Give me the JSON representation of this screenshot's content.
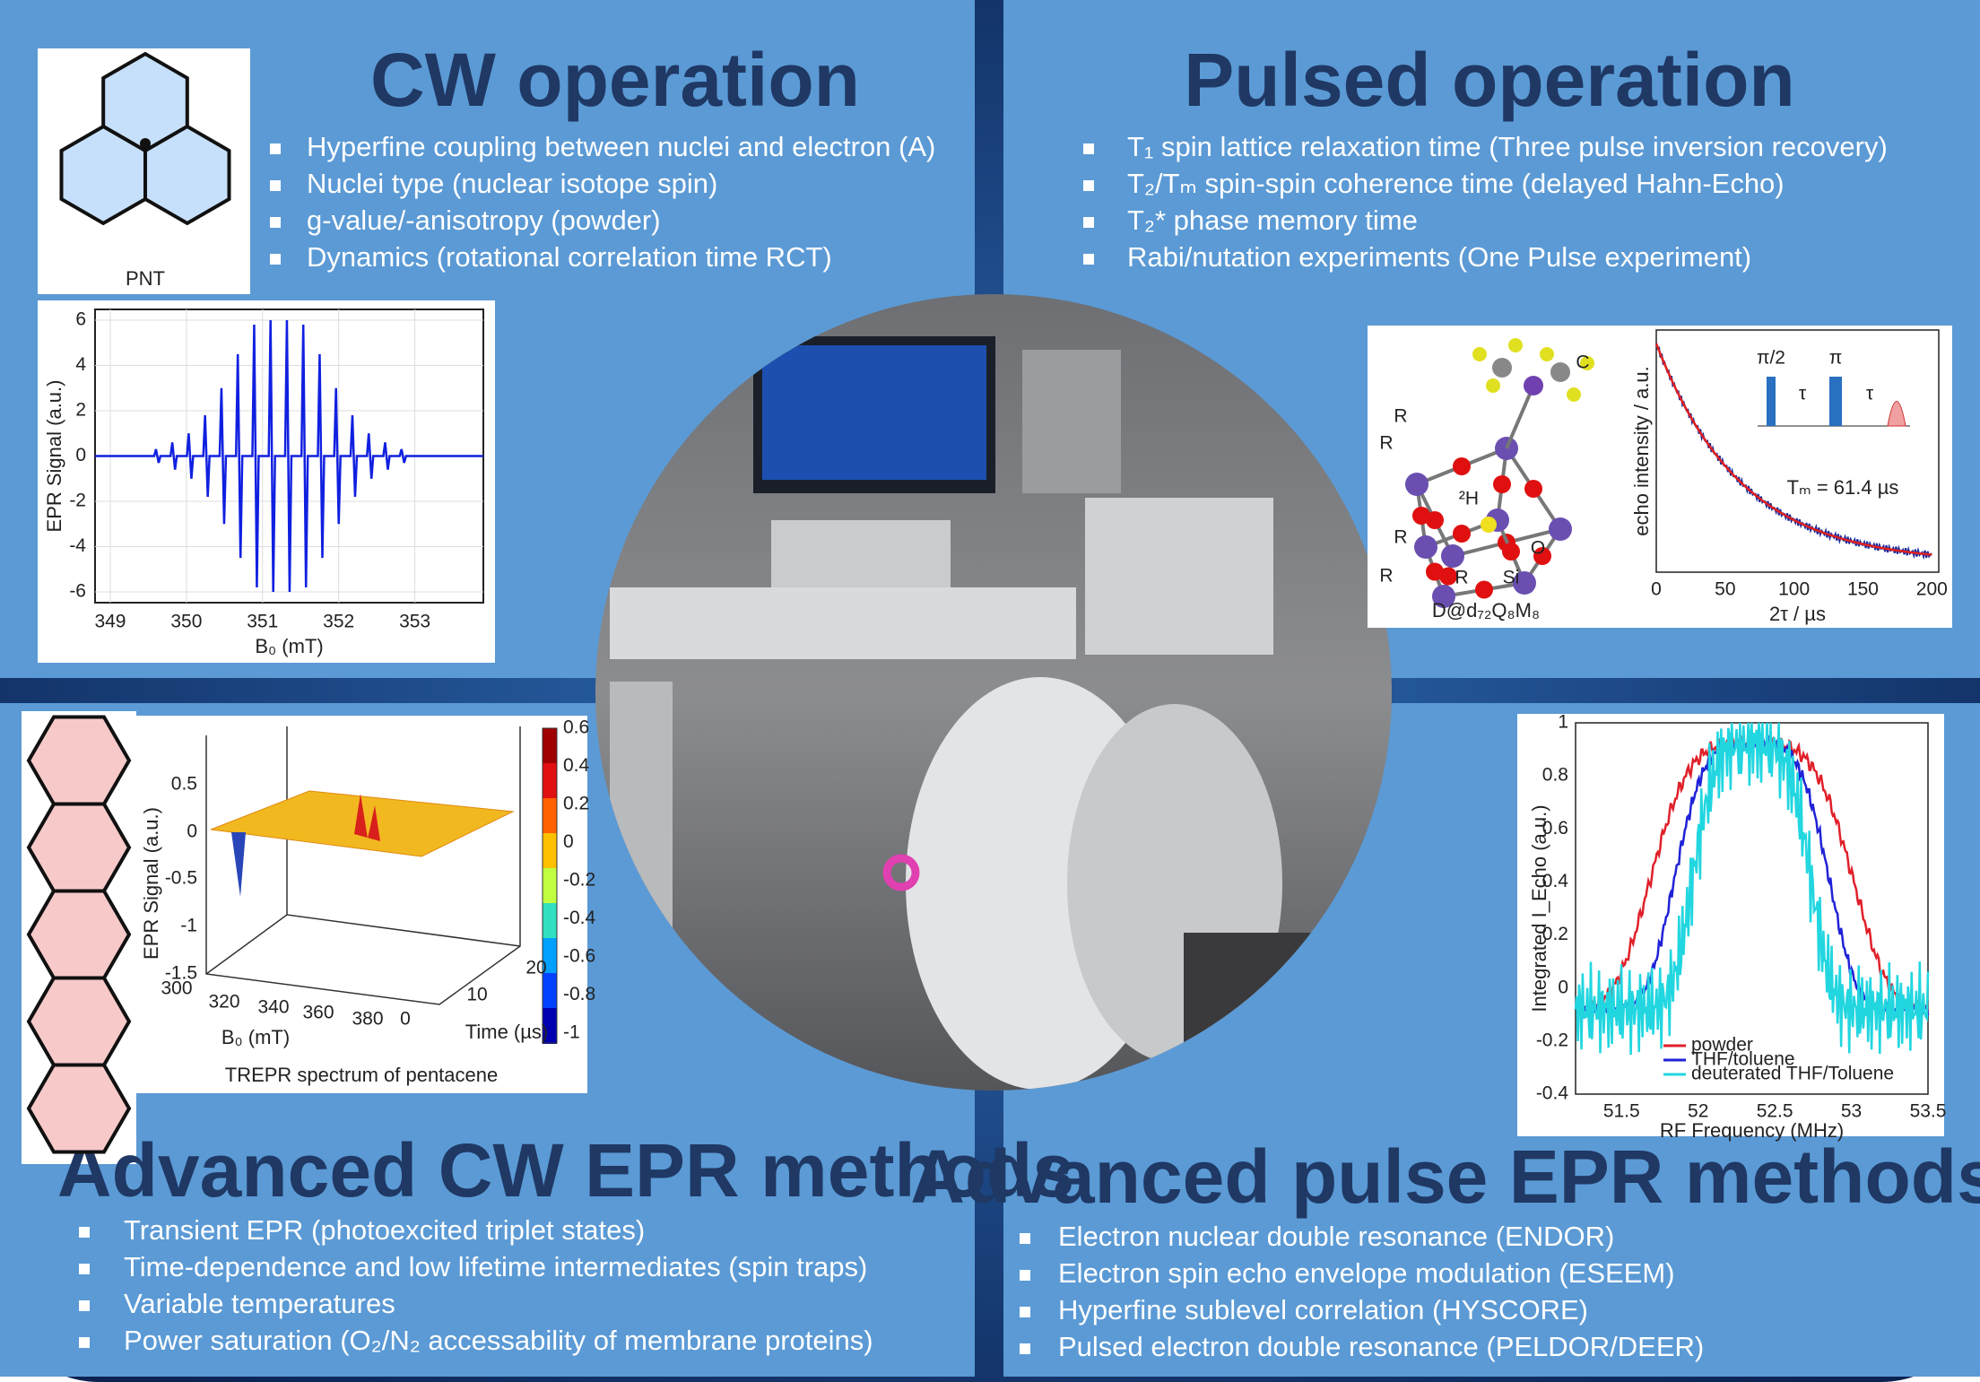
{
  "cw": {
    "title": "CW operation",
    "bullets": [
      "Hyperfine coupling between nuclei and electron (A)",
      "Nuclei type (nuclear isotope spin)",
      "g-value/-anisotropy (powder)",
      "Dynamics (rotational correlation time RCT)"
    ],
    "molecule_label": "PNT",
    "plot": {
      "ylabel": "EPR Signal (a.u.)",
      "xlabel": "B₀ (mT)",
      "yticks": [
        "6",
        "4",
        "2",
        "0",
        "-2",
        "-4",
        "-6"
      ],
      "xticks": [
        "349",
        "350",
        "351",
        "352",
        "353"
      ]
    }
  },
  "pulsed": {
    "title": "Pulsed operation",
    "bullets": [
      "T₁ spin lattice relaxation time (Three pulse inversion recovery)",
      "T₂/Tₘ spin-spin coherence time (delayed Hahn-Echo)",
      "T₂* phase memory time",
      "Rabi/nutation experiments (One Pulse experiment)"
    ],
    "molecule_label": "D@d₇₂Q₈M₈",
    "atom_labels": [
      "R",
      "R",
      "R",
      "R",
      "R",
      "Si",
      "O",
      "²H",
      "C"
    ],
    "plot": {
      "ylabel": "echo intensity / a.u.",
      "xlabel": "2τ / µs",
      "xticks": [
        "0",
        "50",
        "100",
        "150",
        "200"
      ],
      "annotation": "Tₘ = 61.4 µs",
      "pulse_labels": [
        "π/2",
        "π",
        "τ",
        "τ"
      ]
    }
  },
  "adv_cw": {
    "title": "Advanced CW EPR methods",
    "bullets": [
      "Transient EPR (photoexcited triplet states)",
      "Time-dependence and low lifetime intermediates (spin traps)",
      "Variable temperatures",
      "Power saturation (O₂/N₂ accessability of membrane proteins)"
    ],
    "plot": {
      "caption": "TREPR spectrum of pentacene",
      "zlabel": "EPR Signal (a.u.)",
      "xlabel": "B₀ (mT)",
      "ylabel": "Time (µs)",
      "zticks": [
        "0.5",
        "0",
        "-0.5",
        "-1",
        "-1.5"
      ],
      "xticks": [
        "300",
        "320",
        "340",
        "360",
        "380"
      ],
      "yticks": [
        "0",
        "10",
        "20"
      ],
      "colorbar_ticks": [
        "0.6",
        "0.4",
        "0.2",
        "0",
        "-0.2",
        "-0.4",
        "-0.6",
        "-0.8",
        "-1"
      ]
    }
  },
  "adv_pulse": {
    "title": "Advanced pulse EPR methods",
    "bullets": [
      "Electron nuclear double resonance (ENDOR)",
      "Electron spin echo envelope modulation (ESEEM)",
      "Hyperfine sublevel correlation (HYSCORE)",
      "Pulsed electron double resonance (PELDOR/DEER)"
    ],
    "plot": {
      "ylabel": "Integrated I_Echo (a.u.)",
      "xlabel": "RF Frequency (MHz)",
      "yticks": [
        "1",
        "0.8",
        "0.6",
        "0.4",
        "0.2",
        "0",
        "-0.2",
        "-0.4"
      ],
      "xticks": [
        "51.5",
        "52",
        "52.5",
        "53",
        "53.5"
      ],
      "legend": [
        {
          "name": "powder",
          "color": "#e0202a"
        },
        {
          "name": "THF/toluene",
          "color": "#1f22d6"
        },
        {
          "name": "deuterated THF/Toluene",
          "color": "#22d6e0"
        }
      ]
    }
  }
}
